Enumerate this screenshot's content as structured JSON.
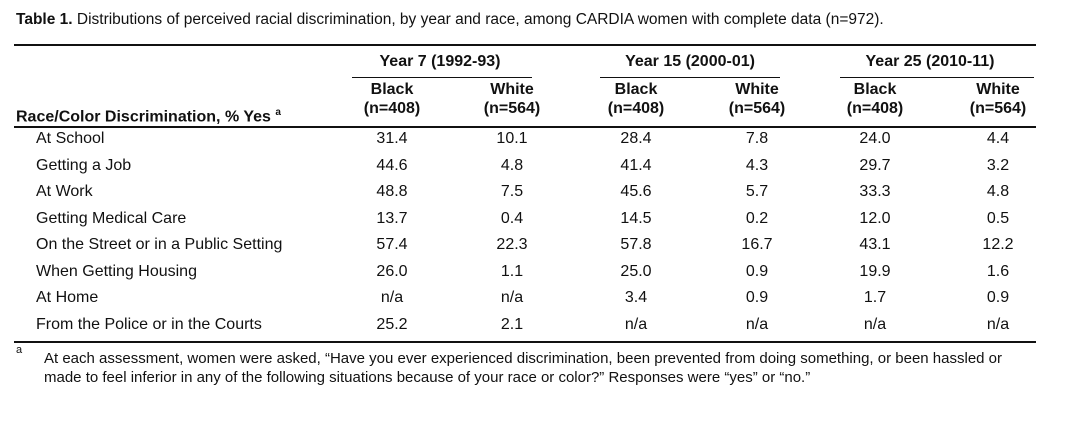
{
  "caption": {
    "label": "Table 1.",
    "text": " Distributions of perceived racial discrimination, by year and race, among CARDIA women with complete data (n=972)."
  },
  "header": {
    "row_label": "Race/Color Discrimination, % Yes",
    "row_label_sup": "a",
    "years": [
      {
        "label": "Year 7 (1992-93)",
        "groups": [
          {
            "race": "Black",
            "n": "(n=408)"
          },
          {
            "race": "White",
            "n": "(n=564)"
          }
        ]
      },
      {
        "label": "Year 15 (2000-01)",
        "groups": [
          {
            "race": "Black",
            "n": "(n=408)"
          },
          {
            "race": "White",
            "n": "(n=564)"
          }
        ]
      },
      {
        "label": "Year 25 (2010-11)",
        "groups": [
          {
            "race": "Black",
            "n": "(n=408)"
          },
          {
            "race": "White",
            "n": "(n=564)"
          }
        ]
      }
    ]
  },
  "rows": [
    {
      "label": "At School",
      "values": [
        "31.4",
        "10.1",
        "28.4",
        "7.8",
        "24.0",
        "4.4"
      ]
    },
    {
      "label": "Getting a Job",
      "values": [
        "44.6",
        "4.8",
        "41.4",
        "4.3",
        "29.7",
        "3.2"
      ]
    },
    {
      "label": "At Work",
      "values": [
        "48.8",
        "7.5",
        "45.6",
        "5.7",
        "33.3",
        "4.8"
      ]
    },
    {
      "label": "Getting Medical Care",
      "values": [
        "13.7",
        "0.4",
        "14.5",
        "0.2",
        "12.0",
        "0.5"
      ]
    },
    {
      "label": "On the Street or in a Public Setting",
      "values": [
        "57.4",
        "22.3",
        "57.8",
        "16.7",
        "43.1",
        "12.2"
      ]
    },
    {
      "label": "When Getting Housing",
      "values": [
        "26.0",
        "1.1",
        "25.0",
        "0.9",
        "19.9",
        "1.6"
      ]
    },
    {
      "label": "At Home",
      "values": [
        "n/a",
        "n/a",
        "3.4",
        "0.9",
        "1.7",
        "0.9"
      ]
    },
    {
      "label": "From the Police or in the Courts",
      "values": [
        "25.2",
        "2.1",
        "n/a",
        "n/a",
        "n/a",
        "n/a"
      ]
    }
  ],
  "footnote": {
    "mark": "a",
    "text": "At each assessment, women were asked, “Have you ever experienced discrimination, been prevented from doing something, or been hassled or made to feel inferior in any of the following situations because of your race or color?” Responses were “yes” or “no.”"
  }
}
